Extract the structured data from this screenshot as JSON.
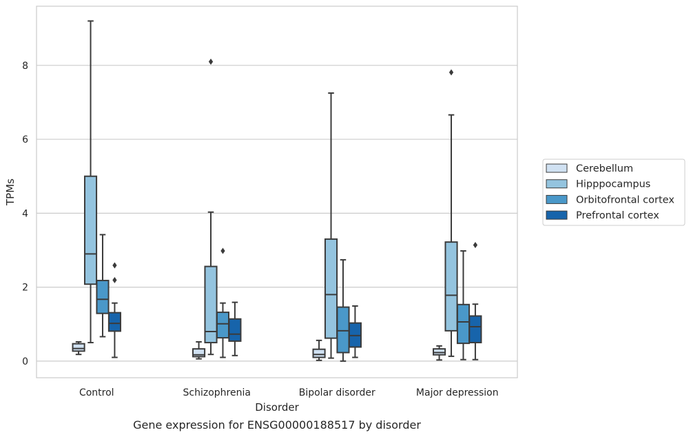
{
  "caption": "Gene expression for ENSG00000188517 by disorder",
  "colors": {
    "Cerebellum": "#d0e1f2",
    "Hipppocampus": "#94c4df",
    "Orbitofrontal cortex": "#4a98c9",
    "Prefrontal cortex": "#1764ab",
    "line": "#3b3b3b",
    "grid": "#cccccc"
  },
  "chart_data": {
    "type": "box",
    "title": "",
    "xlabel": "Disorder",
    "ylabel": "TPMs",
    "ylim": [
      -0.45,
      9.6
    ],
    "yticks": [
      0,
      2,
      4,
      6,
      8
    ],
    "grid": "horizontal",
    "legend_position": "right",
    "categories": [
      "Control",
      "Schizophrenia",
      "Bipolar disorder",
      "Major depression"
    ],
    "series": [
      {
        "name": "Cerebellum",
        "boxes": [
          {
            "whislo": 0.18,
            "q1": 0.27,
            "med": 0.34,
            "q3": 0.47,
            "whishi": 0.52,
            "fliers": []
          },
          {
            "whislo": 0.06,
            "q1": 0.12,
            "med": 0.17,
            "q3": 0.33,
            "whishi": 0.52,
            "fliers": []
          },
          {
            "whislo": 0.02,
            "q1": 0.1,
            "med": 0.18,
            "q3": 0.32,
            "whishi": 0.56,
            "fliers": []
          },
          {
            "whislo": 0.03,
            "q1": 0.17,
            "med": 0.23,
            "q3": 0.33,
            "whishi": 0.41,
            "fliers": []
          }
        ]
      },
      {
        "name": "Hipppocampus",
        "boxes": [
          {
            "whislo": 0.5,
            "q1": 2.08,
            "med": 2.9,
            "q3": 5.0,
            "whishi": 9.2,
            "fliers": []
          },
          {
            "whislo": 0.18,
            "q1": 0.5,
            "med": 0.8,
            "q3": 2.56,
            "whishi": 4.03,
            "fliers": [
              8.1
            ]
          },
          {
            "whislo": 0.08,
            "q1": 0.62,
            "med": 1.8,
            "q3": 3.3,
            "whishi": 7.25,
            "fliers": []
          },
          {
            "whislo": 0.13,
            "q1": 0.82,
            "med": 1.78,
            "q3": 3.22,
            "whishi": 6.66,
            "fliers": [
              7.81
            ]
          }
        ]
      },
      {
        "name": "Orbitofrontal cortex",
        "boxes": [
          {
            "whislo": 0.66,
            "q1": 1.29,
            "med": 1.67,
            "q3": 2.18,
            "whishi": 3.42,
            "fliers": []
          },
          {
            "whislo": 0.1,
            "q1": 0.63,
            "med": 1.01,
            "q3": 1.32,
            "whishi": 1.57,
            "fliers": [
              2.98
            ]
          },
          {
            "whislo": 0.0,
            "q1": 0.23,
            "med": 0.82,
            "q3": 1.46,
            "whishi": 2.74,
            "fliers": []
          },
          {
            "whislo": 0.04,
            "q1": 0.48,
            "med": 1.06,
            "q3": 1.53,
            "whishi": 2.98,
            "fliers": []
          }
        ]
      },
      {
        "name": "Prefrontal cortex",
        "boxes": [
          {
            "whislo": 0.1,
            "q1": 0.81,
            "med": 1.02,
            "q3": 1.31,
            "whishi": 1.57,
            "fliers": [
              2.19,
              2.59
            ]
          },
          {
            "whislo": 0.15,
            "q1": 0.54,
            "med": 0.73,
            "q3": 1.14,
            "whishi": 1.59,
            "fliers": []
          },
          {
            "whislo": 0.1,
            "q1": 0.38,
            "med": 0.69,
            "q3": 1.03,
            "whishi": 1.49,
            "fliers": []
          },
          {
            "whislo": 0.04,
            "q1": 0.5,
            "med": 0.93,
            "q3": 1.22,
            "whishi": 1.54,
            "fliers": [
              3.14
            ]
          }
        ]
      }
    ]
  }
}
